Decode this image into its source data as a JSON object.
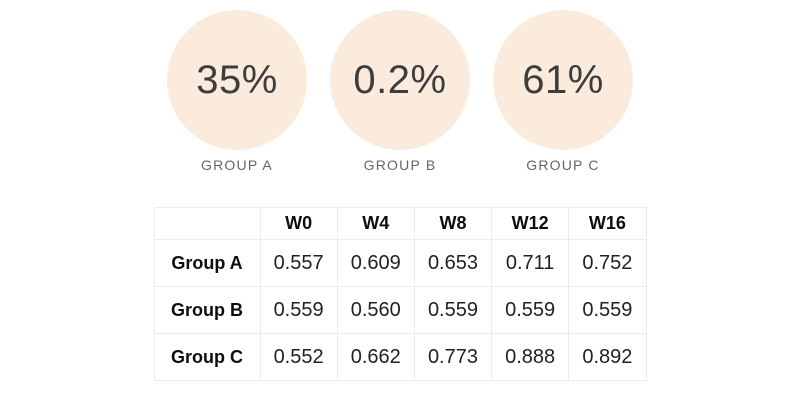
{
  "stats": [
    {
      "value": "35%",
      "label": "GROUP A"
    },
    {
      "value": "0.2%",
      "label": "GROUP B"
    },
    {
      "value": "61%",
      "label": "GROUP C"
    }
  ],
  "table": {
    "columns": [
      "",
      "W0",
      "W4",
      "W8",
      "W12",
      "W16"
    ],
    "rows": [
      {
        "label": "Group A",
        "values": [
          "0.557",
          "0.609",
          "0.653",
          "0.711",
          "0.752"
        ]
      },
      {
        "label": "Group B",
        "values": [
          "0.559",
          "0.560",
          "0.559",
          "0.559",
          "0.559"
        ]
      },
      {
        "label": "Group C",
        "values": [
          "0.552",
          "0.662",
          "0.773",
          "0.888",
          "0.892"
        ]
      }
    ]
  },
  "chart_data": {
    "type": "table",
    "title": "",
    "kpi": [
      {
        "group": "Group A",
        "percent": 35
      },
      {
        "group": "Group B",
        "percent": 0.2
      },
      {
        "group": "Group C",
        "percent": 61
      }
    ],
    "categories": [
      "W0",
      "W4",
      "W8",
      "W12",
      "W16"
    ],
    "series": [
      {
        "name": "Group A",
        "values": [
          0.557,
          0.609,
          0.653,
          0.711,
          0.752
        ]
      },
      {
        "name": "Group B",
        "values": [
          0.559,
          0.56,
          0.559,
          0.559,
          0.559
        ]
      },
      {
        "name": "Group C",
        "values": [
          0.552,
          0.662,
          0.773,
          0.888,
          0.892
        ]
      }
    ]
  },
  "colors": {
    "circle_fill": "#faebdc",
    "circle_text": "#3d3d3d",
    "stat_label_text": "#666666",
    "table_border": "#ececec",
    "table_header_text": "#0d0d0d",
    "table_value_text": "#222222",
    "background": "#ffffff"
  }
}
